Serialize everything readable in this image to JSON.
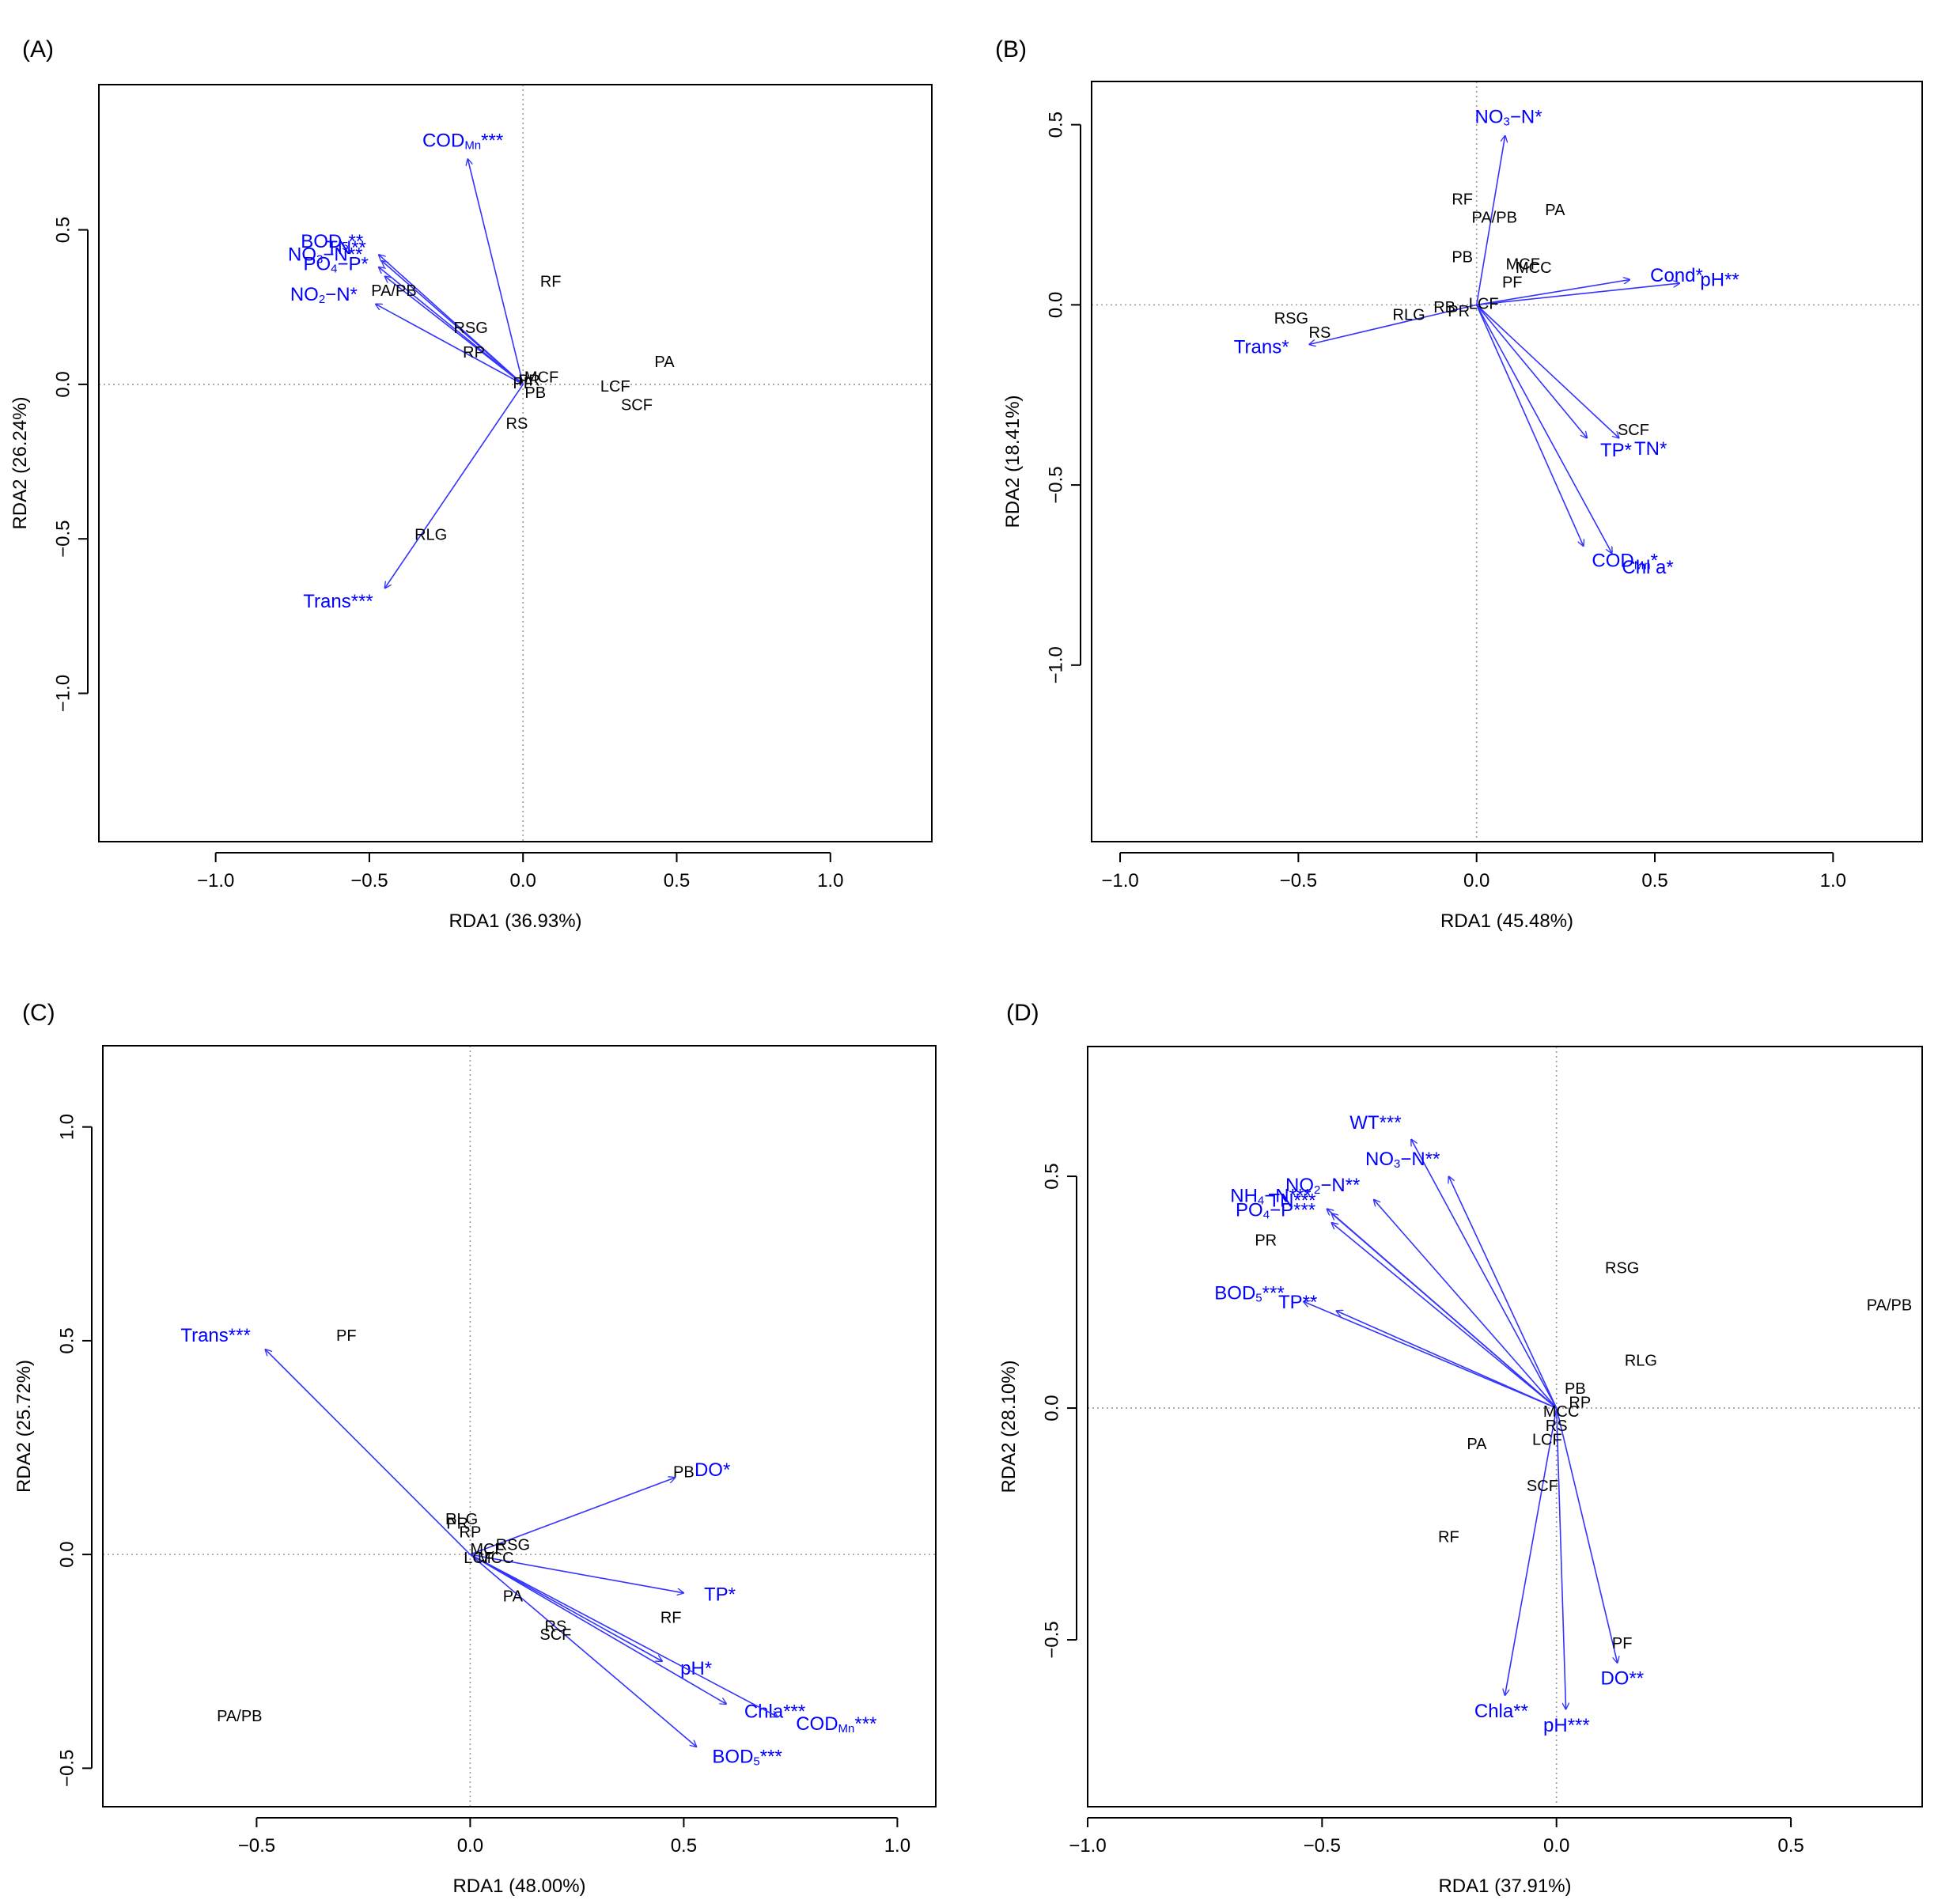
{
  "colors": {
    "arrow": "#3333ff",
    "env_label": "#0000ff",
    "site_label": "#000000",
    "zero_line": "#9a9a9a"
  },
  "chart_data": [
    {
      "type": "scatter",
      "panel": "(A)",
      "xlabel": "RDA1 (36.93%)",
      "ylabel": "RDA2 (26.24%)",
      "xlim": [
        -1.38,
        1.33
      ],
      "ylim": [
        -1.48,
        0.97
      ],
      "xticks": [
        -1.0,
        -0.5,
        0.0,
        0.5,
        1.0
      ],
      "yticks": [
        -1.0,
        -0.5,
        0.0,
        0.5
      ],
      "sites": [
        {
          "name": "RF",
          "x": 0.09,
          "y": 0.33
        },
        {
          "name": "PA/PB",
          "x": -0.42,
          "y": 0.3
        },
        {
          "name": "RSG",
          "x": -0.17,
          "y": 0.18
        },
        {
          "name": "RP",
          "x": -0.16,
          "y": 0.1
        },
        {
          "name": "PA",
          "x": 0.46,
          "y": 0.07
        },
        {
          "name": "MCF",
          "x": 0.06,
          "y": 0.02
        },
        {
          "name": "PR",
          "x": 0.02,
          "y": 0.01
        },
        {
          "name": "PF",
          "x": 0.0,
          "y": 0.0
        },
        {
          "name": "PB",
          "x": 0.04,
          "y": -0.03
        },
        {
          "name": "LCF",
          "x": 0.3,
          "y": -0.01
        },
        {
          "name": "SCF",
          "x": 0.37,
          "y": -0.07
        },
        {
          "name": "RS",
          "x": -0.02,
          "y": -0.13
        },
        {
          "name": "RLG",
          "x": -0.3,
          "y": -0.49
        }
      ],
      "vectors": [
        {
          "name": "CODMn***",
          "base": "COD",
          "sub": "Mn",
          "sup": "***",
          "x": -0.18,
          "y": 0.73
        },
        {
          "name": "BOD5**",
          "base": "BOD",
          "sub": "5",
          "sup": "**",
          "x": -0.47,
          "y": 0.42
        },
        {
          "name": "TN**",
          "base": "TN",
          "sub": "",
          "sup": "**",
          "x": -0.46,
          "y": 0.4
        },
        {
          "name": "NO3-N**",
          "base": "NO",
          "sub": "3",
          "tail": "−N",
          "sup": "**",
          "x": -0.47,
          "y": 0.38
        },
        {
          "name": "PO4-P*",
          "base": "PO",
          "sub": "4",
          "tail": "−P",
          "sup": "*",
          "x": -0.45,
          "y": 0.35
        },
        {
          "name": "NO2-N*",
          "base": "NO",
          "sub": "2",
          "tail": "−N",
          "sup": "*",
          "x": -0.48,
          "y": 0.26
        },
        {
          "name": "Trans***",
          "base": "Trans",
          "sub": "",
          "sup": "***",
          "x": -0.45,
          "y": -0.66
        }
      ]
    },
    {
      "type": "scatter",
      "panel": "(B)",
      "xlabel": "RDA1 (45.48%)",
      "ylabel": "RDA2 (18.41%)",
      "xlim": [
        -1.08,
        1.25
      ],
      "ylim": [
        -1.49,
        0.62
      ],
      "xticks": [
        -1.0,
        -0.5,
        0.0,
        0.5,
        1.0
      ],
      "yticks": [
        -1.0,
        -0.5,
        0.0,
        0.5
      ],
      "sites": [
        {
          "name": "RF",
          "x": -0.04,
          "y": 0.29
        },
        {
          "name": "PA",
          "x": 0.22,
          "y": 0.26
        },
        {
          "name": "PA/PB",
          "x": 0.05,
          "y": 0.24
        },
        {
          "name": "PB",
          "x": -0.04,
          "y": 0.13
        },
        {
          "name": "MCF",
          "x": 0.13,
          "y": 0.11
        },
        {
          "name": "MCC",
          "x": 0.16,
          "y": 0.1
        },
        {
          "name": "PF",
          "x": 0.1,
          "y": 0.06
        },
        {
          "name": "RSG",
          "x": -0.52,
          "y": -0.04
        },
        {
          "name": "RS",
          "x": -0.44,
          "y": -0.08
        },
        {
          "name": "RLG",
          "x": -0.19,
          "y": -0.03
        },
        {
          "name": "RB",
          "x": -0.09,
          "y": -0.01
        },
        {
          "name": "PR",
          "x": -0.05,
          "y": -0.02
        },
        {
          "name": "LCF",
          "x": 0.02,
          "y": 0.0
        },
        {
          "name": "SCF",
          "x": 0.44,
          "y": -0.35
        }
      ],
      "vectors": [
        {
          "name": "NO3-N*",
          "base": "NO",
          "sub": "3",
          "tail": "−N",
          "sup": "*",
          "x": 0.08,
          "y": 0.47
        },
        {
          "name": "Cond*",
          "base": "Cond",
          "sub": "",
          "sup": "*",
          "x": 0.43,
          "y": 0.07
        },
        {
          "name": "pH**",
          "base": "pH",
          "sub": "",
          "sup": "**",
          "x": 0.57,
          "y": 0.06
        },
        {
          "name": "Trans*",
          "base": "Trans",
          "sub": "",
          "sup": "*",
          "x": -0.47,
          "y": -0.11
        },
        {
          "name": "TP*",
          "base": "TP",
          "sub": "",
          "sup": "*",
          "x": 0.31,
          "y": -0.37
        },
        {
          "name": "TN*",
          "base": "TN",
          "sub": "",
          "sup": "*",
          "x": 0.4,
          "y": -0.37
        },
        {
          "name": "CODMn*",
          "base": "COD",
          "sub": "Mn",
          "sup": "*",
          "x": 0.3,
          "y": -0.67
        },
        {
          "name": "Chl a*",
          "base": "Chl a",
          "sub": "",
          "sup": "*",
          "x": 0.38,
          "y": -0.69
        }
      ]
    },
    {
      "type": "scatter",
      "panel": "(C)",
      "xlabel": "RDA1 (48.00%)",
      "ylabel": "RDA2 (25.72%)",
      "xlim": [
        -0.86,
        1.09
      ],
      "ylim": [
        -0.59,
        1.19
      ],
      "xticks": [
        -0.5,
        0.0,
        0.5,
        1.0
      ],
      "yticks": [
        -0.5,
        0.0,
        0.5,
        1.0
      ],
      "sites": [
        {
          "name": "PF",
          "x": -0.29,
          "y": 0.51
        },
        {
          "name": "PB",
          "x": 0.5,
          "y": 0.19
        },
        {
          "name": "RLG",
          "x": -0.02,
          "y": 0.08
        },
        {
          "name": "PR",
          "x": -0.03,
          "y": 0.07
        },
        {
          "name": "RP",
          "x": 0.0,
          "y": 0.05
        },
        {
          "name": "RSG",
          "x": 0.1,
          "y": 0.02
        },
        {
          "name": "MCF",
          "x": 0.04,
          "y": 0.01
        },
        {
          "name": "LCF",
          "x": 0.02,
          "y": -0.01
        },
        {
          "name": "MCC",
          "x": 0.06,
          "y": -0.01
        },
        {
          "name": "PA",
          "x": 0.1,
          "y": -0.1
        },
        {
          "name": "RS",
          "x": 0.2,
          "y": -0.17
        },
        {
          "name": "SCF",
          "x": 0.2,
          "y": -0.19
        },
        {
          "name": "RF",
          "x": 0.47,
          "y": -0.15
        },
        {
          "name": "PA/PB",
          "x": -0.54,
          "y": -0.38
        }
      ],
      "vectors": [
        {
          "name": "Trans***",
          "base": "Trans",
          "sub": "",
          "sup": "***",
          "x": -0.48,
          "y": 0.48
        },
        {
          "name": "DO*",
          "base": "DO",
          "sub": "",
          "sup": "*",
          "x": 0.48,
          "y": 0.18
        },
        {
          "name": "TP*",
          "base": "TP",
          "sub": "",
          "sup": "*",
          "x": 0.5,
          "y": -0.09
        },
        {
          "name": "pH*",
          "base": "pH",
          "sub": "",
          "sup": "*",
          "x": 0.45,
          "y": -0.25
        },
        {
          "name": "Chla***",
          "base": "Chla",
          "sub": "",
          "sup": "***",
          "x": 0.6,
          "y": -0.35
        },
        {
          "name": "CODMn***",
          "base": "COD",
          "sub": "Mn",
          "sup": "***",
          "x": 0.72,
          "y": -0.38
        },
        {
          "name": "BOD5***",
          "base": "BOD",
          "sub": "5",
          "sup": "***",
          "x": 0.53,
          "y": -0.45
        }
      ]
    },
    {
      "type": "scatter",
      "panel": "(D)",
      "xlabel": "RDA1 (37.91%)",
      "ylabel": "RDA2 (28.10%)",
      "xlim": [
        -1.0,
        0.78
      ],
      "ylim": [
        -0.86,
        0.78
      ],
      "xticks": [
        -1.0,
        -0.5,
        0.0,
        0.5
      ],
      "yticks": [
        -0.5,
        0.0,
        0.5
      ],
      "sites": [
        {
          "name": "PR",
          "x": -0.62,
          "y": 0.36
        },
        {
          "name": "RSG",
          "x": 0.14,
          "y": 0.3
        },
        {
          "name": "PA/PB",
          "x": 0.71,
          "y": 0.22
        },
        {
          "name": "RLG",
          "x": 0.18,
          "y": 0.1
        },
        {
          "name": "PB",
          "x": 0.04,
          "y": 0.04
        },
        {
          "name": "RP",
          "x": 0.05,
          "y": 0.01
        },
        {
          "name": "MCC",
          "x": 0.01,
          "y": -0.01
        },
        {
          "name": "RS",
          "x": 0.0,
          "y": -0.04
        },
        {
          "name": "LCF",
          "x": -0.02,
          "y": -0.07
        },
        {
          "name": "PA",
          "x": -0.17,
          "y": -0.08
        },
        {
          "name": "SCF",
          "x": -0.03,
          "y": -0.17
        },
        {
          "name": "RF",
          "x": -0.23,
          "y": -0.28
        },
        {
          "name": "PF",
          "x": 0.14,
          "y": -0.51
        }
      ],
      "vectors": [
        {
          "name": "WT***",
          "base": "WT",
          "sub": "",
          "sup": "***",
          "x": -0.31,
          "y": 0.58
        },
        {
          "name": "NO3-N**",
          "base": "NO",
          "sub": "3",
          "tail": "−N",
          "sup": "**",
          "x": -0.23,
          "y": 0.5
        },
        {
          "name": "NH4-N***",
          "base": "NH",
          "sub": "4",
          "tail": "−N",
          "sup": "***",
          "x": -0.49,
          "y": 0.43
        },
        {
          "name": "NO2-N**",
          "base": "NO",
          "sub": "2",
          "tail": "−N",
          "sup": "**",
          "x": -0.39,
          "y": 0.45
        },
        {
          "name": "TN***",
          "base": "TN",
          "sub": "",
          "sup": "***",
          "x": -0.48,
          "y": 0.42
        },
        {
          "name": "PO4-P***",
          "base": "PO",
          "sub": "4",
          "tail": "−P",
          "sup": "***",
          "x": -0.48,
          "y": 0.4
        },
        {
          "name": "BOD5***",
          "base": "BOD",
          "sub": "5",
          "sup": "***",
          "x": -0.54,
          "y": 0.23
        },
        {
          "name": "TP**",
          "base": "TP",
          "sub": "",
          "sup": "**",
          "x": -0.47,
          "y": 0.21
        },
        {
          "name": "Chla**",
          "base": "Chla",
          "sub": "",
          "sup": "**",
          "x": -0.11,
          "y": -0.62
        },
        {
          "name": "pH***",
          "base": "pH",
          "sub": "",
          "sup": "***",
          "x": 0.02,
          "y": -0.65
        },
        {
          "name": "DO**",
          "base": "DO",
          "sub": "",
          "sup": "**",
          "x": 0.13,
          "y": -0.55
        }
      ]
    }
  ]
}
